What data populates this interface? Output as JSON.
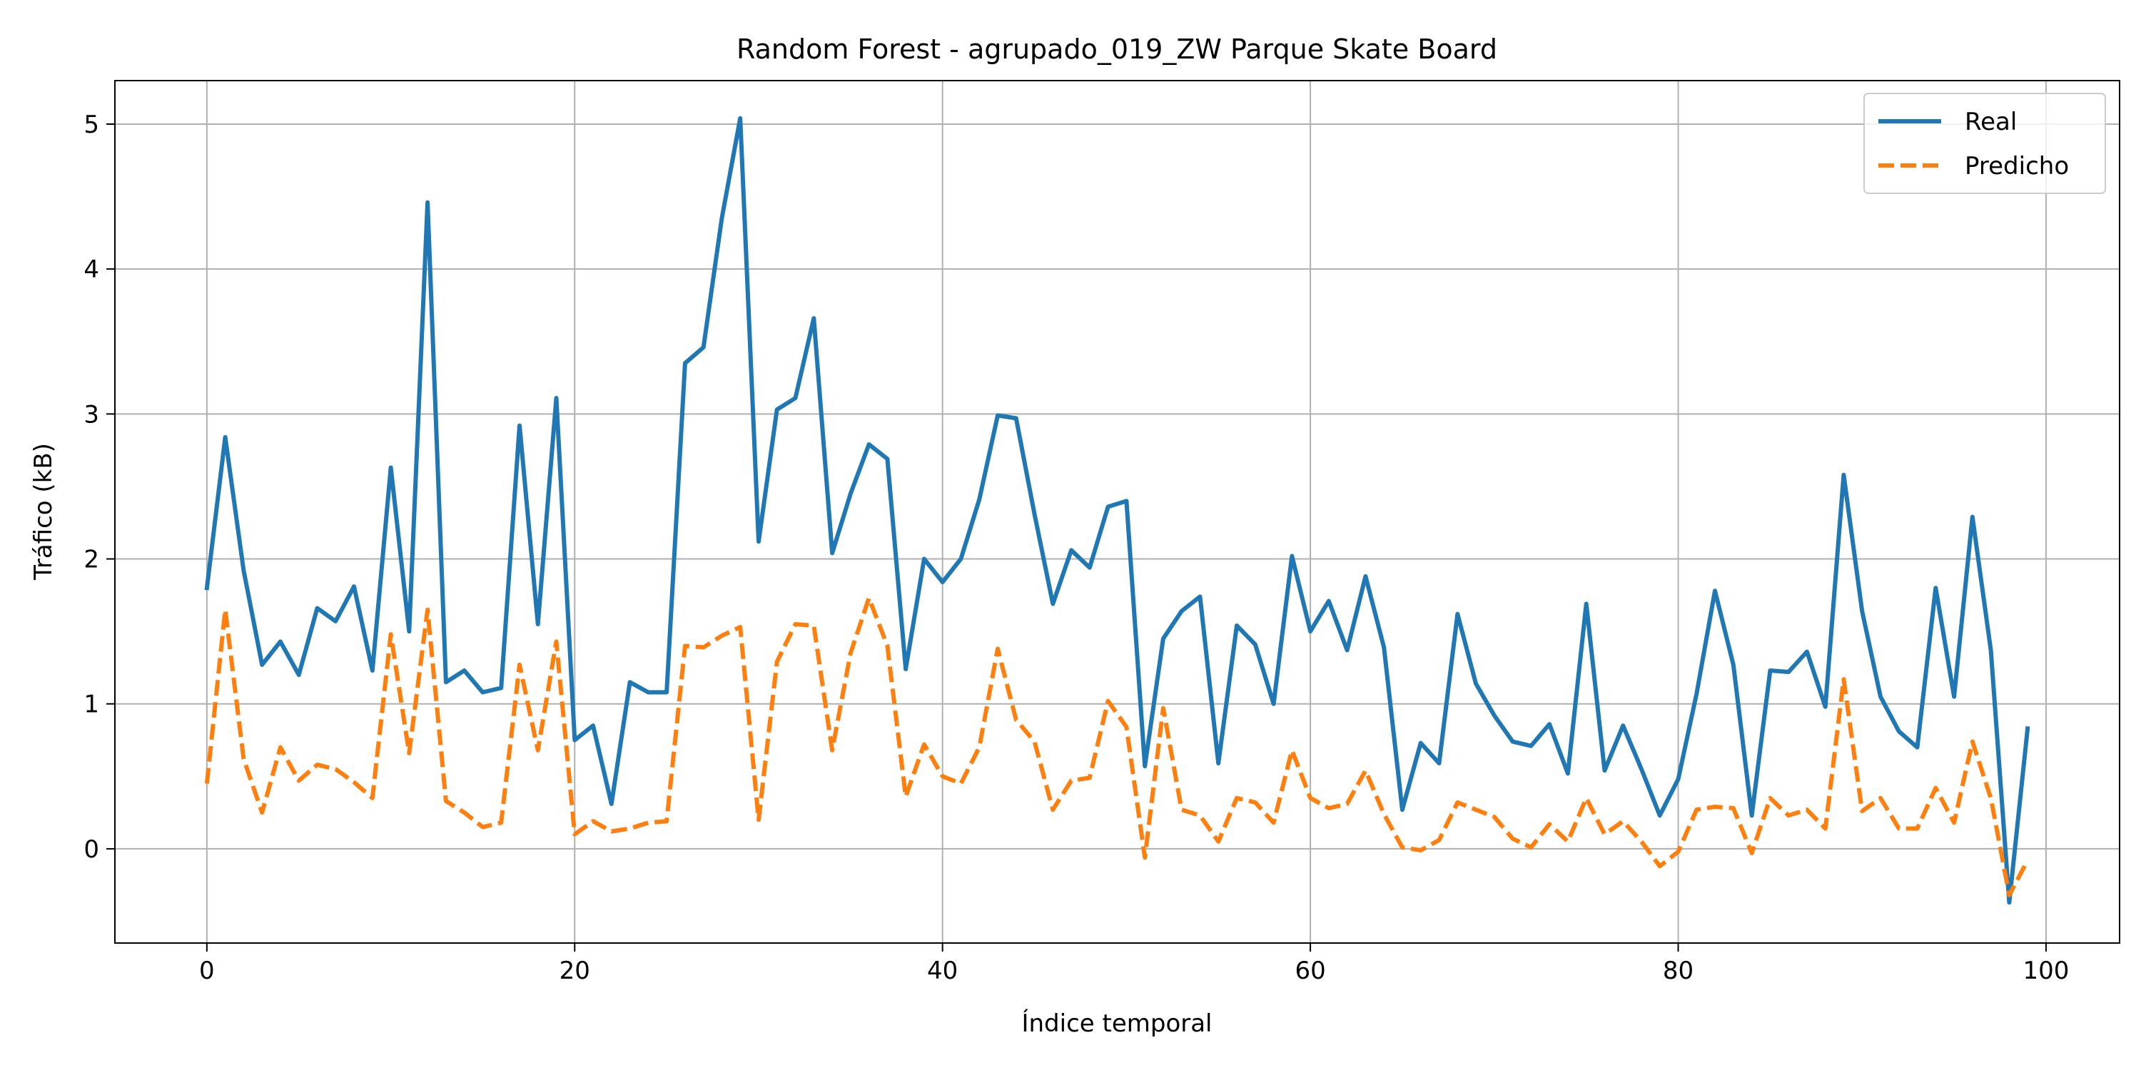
{
  "chart_data": {
    "type": "line",
    "title": "Random Forest - agrupado_019_ZW Parque Skate Board",
    "xlabel": "Índice temporal",
    "ylabel": "Tráfico (kB)",
    "xlim": [
      -5,
      104
    ],
    "ylim": [
      -0.65,
      5.3
    ],
    "xticks": [
      0,
      20,
      40,
      60,
      80,
      100
    ],
    "yticks": [
      0,
      1,
      2,
      3,
      4,
      5
    ],
    "grid": true,
    "legend_position": "top-right",
    "series": [
      {
        "name": "Real",
        "color": "#1f77b4",
        "dash": "solid",
        "x": [
          0,
          1,
          2,
          3,
          4,
          5,
          6,
          7,
          8,
          9,
          10,
          11,
          12,
          13,
          14,
          15,
          16,
          17,
          18,
          19,
          20,
          21,
          22,
          23,
          24,
          25,
          26,
          27,
          28,
          29,
          30,
          31,
          32,
          33,
          34,
          35,
          36,
          37,
          38,
          39,
          40,
          41,
          42,
          43,
          44,
          45,
          46,
          47,
          48,
          49,
          50,
          51,
          52,
          53,
          54,
          55,
          56,
          57,
          58,
          59,
          60,
          61,
          62,
          63,
          64,
          65,
          66,
          67,
          68,
          69,
          70,
          71,
          72,
          73,
          74,
          75,
          76,
          77,
          78,
          79,
          80,
          81,
          82,
          83,
          84,
          85,
          86,
          87,
          88,
          89,
          90,
          91,
          92,
          93,
          94,
          95,
          96,
          97,
          98,
          99
        ],
        "values": [
          1.8,
          2.84,
          1.92,
          1.27,
          1.43,
          1.2,
          1.66,
          1.57,
          1.81,
          1.23,
          2.63,
          1.5,
          4.46,
          1.15,
          1.23,
          1.08,
          1.11,
          2.92,
          1.55,
          3.11,
          0.75,
          0.85,
          0.31,
          1.15,
          1.08,
          1.08,
          3.35,
          3.46,
          4.35,
          5.04,
          2.12,
          3.03,
          3.11,
          3.66,
          2.04,
          2.45,
          2.79,
          2.69,
          1.24,
          2.0,
          1.84,
          2.0,
          2.41,
          2.99,
          2.97,
          2.31,
          1.69,
          2.06,
          1.94,
          2.36,
          2.4,
          0.57,
          1.45,
          1.64,
          1.74,
          0.59,
          1.54,
          1.41,
          1.0,
          2.02,
          1.5,
          1.71,
          1.37,
          1.88,
          1.39,
          0.27,
          0.73,
          0.59,
          1.62,
          1.14,
          0.92,
          0.74,
          0.71,
          0.86,
          0.52,
          1.69,
          0.54,
          0.85,
          0.55,
          0.23,
          0.48,
          1.07,
          1.78,
          1.27,
          0.23,
          1.23,
          1.22,
          1.36,
          0.98,
          2.58,
          1.64,
          1.05,
          0.81,
          0.7,
          1.8,
          1.05,
          2.29,
          1.37,
          -0.37,
          0.83
        ]
      },
      {
        "name": "Predicho",
        "color": "#ff7f0e",
        "dash": "dashed",
        "x": [
          0,
          1,
          2,
          3,
          4,
          5,
          6,
          7,
          8,
          9,
          10,
          11,
          12,
          13,
          14,
          15,
          16,
          17,
          18,
          19,
          20,
          21,
          22,
          23,
          24,
          25,
          26,
          27,
          28,
          29,
          30,
          31,
          32,
          33,
          34,
          35,
          36,
          37,
          38,
          39,
          40,
          41,
          42,
          43,
          44,
          45,
          46,
          47,
          48,
          49,
          50,
          51,
          52,
          53,
          54,
          55,
          56,
          57,
          58,
          59,
          60,
          61,
          62,
          63,
          64,
          65,
          66,
          67,
          68,
          69,
          70,
          71,
          72,
          73,
          74,
          75,
          76,
          77,
          78,
          79,
          80,
          81,
          82,
          83,
          84,
          85,
          86,
          87,
          88,
          89,
          90,
          91,
          92,
          93,
          94,
          95,
          96,
          97,
          98,
          99
        ],
        "values": [
          0.45,
          1.65,
          0.62,
          0.25,
          0.7,
          0.47,
          0.58,
          0.55,
          0.46,
          0.35,
          1.48,
          0.66,
          1.65,
          0.33,
          0.25,
          0.15,
          0.18,
          1.27,
          0.68,
          1.43,
          0.1,
          0.19,
          0.12,
          0.14,
          0.18,
          0.19,
          1.4,
          1.39,
          1.47,
          1.53,
          0.2,
          1.29,
          1.55,
          1.54,
          0.68,
          1.35,
          1.73,
          1.4,
          0.36,
          0.72,
          0.5,
          0.45,
          0.7,
          1.38,
          0.89,
          0.74,
          0.27,
          0.47,
          0.49,
          1.02,
          0.84,
          -0.06,
          0.97,
          0.27,
          0.23,
          0.05,
          0.35,
          0.32,
          0.18,
          0.68,
          0.35,
          0.28,
          0.31,
          0.54,
          0.24,
          0.01,
          -0.01,
          0.06,
          0.32,
          0.27,
          0.22,
          0.07,
          0.01,
          0.17,
          0.05,
          0.35,
          0.1,
          0.19,
          0.05,
          -0.12,
          -0.02,
          0.27,
          0.29,
          0.28,
          -0.03,
          0.35,
          0.23,
          0.27,
          0.14,
          1.17,
          0.26,
          0.35,
          0.14,
          0.14,
          0.42,
          0.18,
          0.74,
          0.35,
          -0.32,
          -0.08
        ]
      }
    ]
  }
}
